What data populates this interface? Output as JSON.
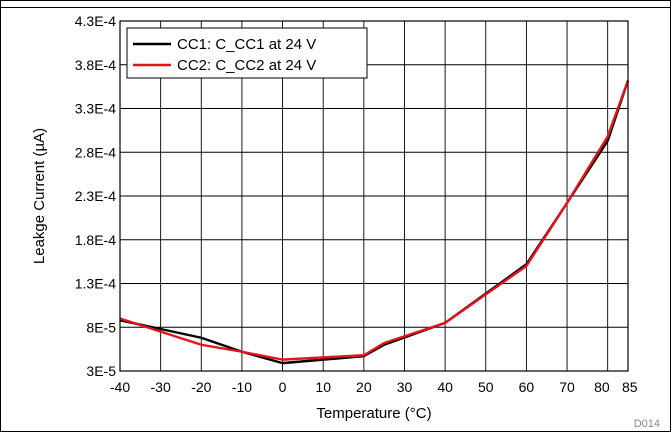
{
  "chart_data": {
    "type": "line",
    "title": "",
    "xlabel": "Temperature (°C)",
    "ylabel": "Leakge Current (µA)",
    "xlim": [
      -40,
      85
    ],
    "ylim": [
      3e-05,
      0.00043
    ],
    "x_tick_values": [
      -40,
      -30,
      -20,
      -10,
      0,
      10,
      20,
      30,
      40,
      50,
      60,
      70,
      80,
      85
    ],
    "x_tick_labels": [
      "-40",
      "-30",
      "-20",
      "-10",
      "0",
      "10",
      "20",
      "30",
      "40",
      "50",
      "60",
      "70",
      "80",
      "85"
    ],
    "y_tick_values": [
      3e-05,
      8e-05,
      0.00013,
      0.00018,
      0.00023,
      0.00028,
      0.00033,
      0.00038,
      0.00043
    ],
    "y_tick_labels": [
      "3E-5",
      "8E-5",
      "1.3E-4",
      "1.8E-4",
      "2.3E-4",
      "2.8E-4",
      "3.3E-4",
      "3.8E-4",
      "4.3E-4"
    ],
    "grid": true,
    "legend_position": "top-left",
    "series": [
      {
        "name": "CC1: C_CC1 at 24 V",
        "color": "#000000",
        "x": [
          -40,
          -30,
          -20,
          -10,
          0,
          20,
          25,
          40,
          60,
          70,
          80,
          85
        ],
        "y": [
          8.8e-05,
          7.8e-05,
          6.8e-05,
          5.2e-05,
          3.9e-05,
          4.7e-05,
          6e-05,
          8.5e-05,
          0.000152,
          0.000222,
          0.000293,
          0.000362
        ]
      },
      {
        "name": "CC2: C_CC2 at 24 V",
        "color": "#e4141b",
        "x": [
          -40,
          -30,
          -20,
          -10,
          0,
          20,
          25,
          40,
          60,
          70,
          80,
          85
        ],
        "y": [
          9e-05,
          7.5e-05,
          6e-05,
          5.2e-05,
          4.3e-05,
          4.8e-05,
          6.2e-05,
          8.5e-05,
          0.00015,
          0.000222,
          0.000298,
          0.000362
        ]
      }
    ],
    "figure_id": "D014"
  }
}
